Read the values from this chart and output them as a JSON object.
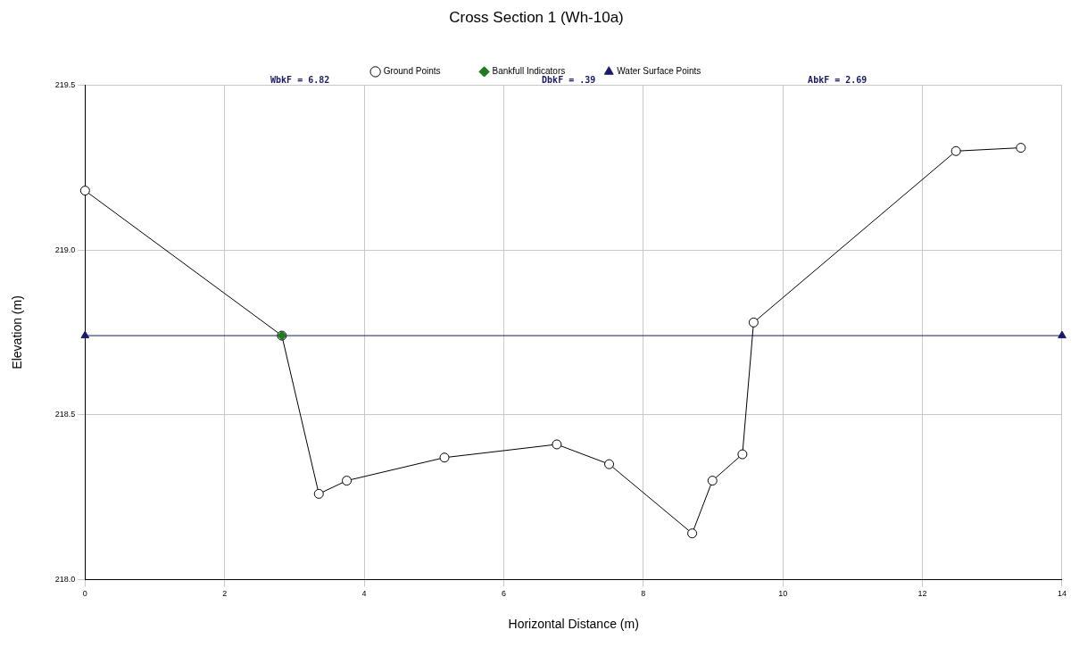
{
  "chart_data": {
    "type": "line",
    "title": "Cross Section 1 (Wh-10a)",
    "xlabel": "Horizontal Distance (m)",
    "ylabel": "Elevation (m)",
    "annotations": [
      "WbkF = 6.82",
      "DbkF = .39",
      "AbkF = 2.69"
    ],
    "series": [
      {
        "name": "Ground Points",
        "color": "#000000",
        "marker": "circle",
        "x": [
          0,
          2.82,
          3.35,
          3.75,
          5.15,
          6.76,
          7.51,
          8.7,
          8.99,
          9.42,
          9.58,
          12.48,
          13.41
        ],
        "values": [
          219.18,
          218.74,
          218.26,
          218.3,
          218.37,
          218.41,
          218.35,
          218.14,
          218.3,
          218.38,
          218.78,
          219.3,
          219.31
        ]
      },
      {
        "name": "Bankfull Indicators",
        "type": "scatter",
        "color": "#1f7a1f",
        "marker": "diamond",
        "x": [
          2.82
        ],
        "values": [
          218.74
        ]
      },
      {
        "name": "Water Surface Points",
        "type": "line",
        "color": "#1a1a66",
        "marker": "triangle",
        "x": [
          0,
          14
        ],
        "values": [
          218.74,
          218.74
        ]
      }
    ],
    "xlim": [
      0,
      14
    ],
    "xticks": [
      0,
      2,
      4,
      6,
      8,
      10,
      12,
      14
    ],
    "ylim": [
      218,
      219.5
    ],
    "yticks": [
      {
        "value": 218,
        "label": "218.0"
      },
      218.5,
      {
        "value": 219,
        "label": "219.0"
      },
      219.5
    ],
    "grid": true,
    "legend": "top"
  }
}
